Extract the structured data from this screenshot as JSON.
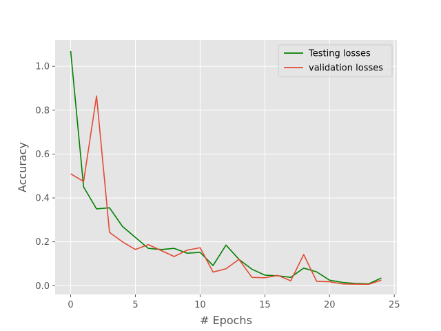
{
  "chart_data": {
    "type": "line",
    "title": "",
    "xlabel": "# Epochs",
    "ylabel": "Accuracy",
    "xlim": [
      -1.2,
      25.2
    ],
    "ylim": [
      -0.04,
      1.12
    ],
    "xticks": [
      0,
      5,
      10,
      15,
      20,
      25
    ],
    "yticks": [
      0.0,
      0.2,
      0.4,
      0.6,
      0.8,
      1.0
    ],
    "xtick_labels": [
      "0",
      "5",
      "10",
      "15",
      "20",
      "25"
    ],
    "ytick_labels": [
      "0.0",
      "0.2",
      "0.4",
      "0.6",
      "0.8",
      "1.0"
    ],
    "grid": true,
    "legend_position": "top-right",
    "x": [
      0,
      1,
      2,
      3,
      4,
      5,
      6,
      7,
      8,
      9,
      10,
      11,
      12,
      13,
      14,
      15,
      16,
      17,
      18,
      19,
      20,
      21,
      22,
      23,
      24
    ],
    "series": [
      {
        "name": "Testing losses",
        "color": "#008000",
        "values": [
          1.07,
          0.45,
          0.35,
          0.355,
          0.27,
          0.22,
          0.17,
          0.165,
          0.17,
          0.148,
          0.152,
          0.092,
          0.185,
          0.12,
          0.075,
          0.048,
          0.045,
          0.038,
          0.08,
          0.063,
          0.025,
          0.015,
          0.01,
          0.008,
          0.035
        ]
      },
      {
        "name": "validation losses",
        "color": "#E24A33",
        "values": [
          0.51,
          0.475,
          0.865,
          0.243,
          0.2,
          0.165,
          0.187,
          0.16,
          0.133,
          0.162,
          0.173,
          0.062,
          0.077,
          0.12,
          0.038,
          0.036,
          0.047,
          0.022,
          0.142,
          0.02,
          0.018,
          0.008,
          0.007,
          0.006,
          0.025
        ]
      }
    ]
  }
}
